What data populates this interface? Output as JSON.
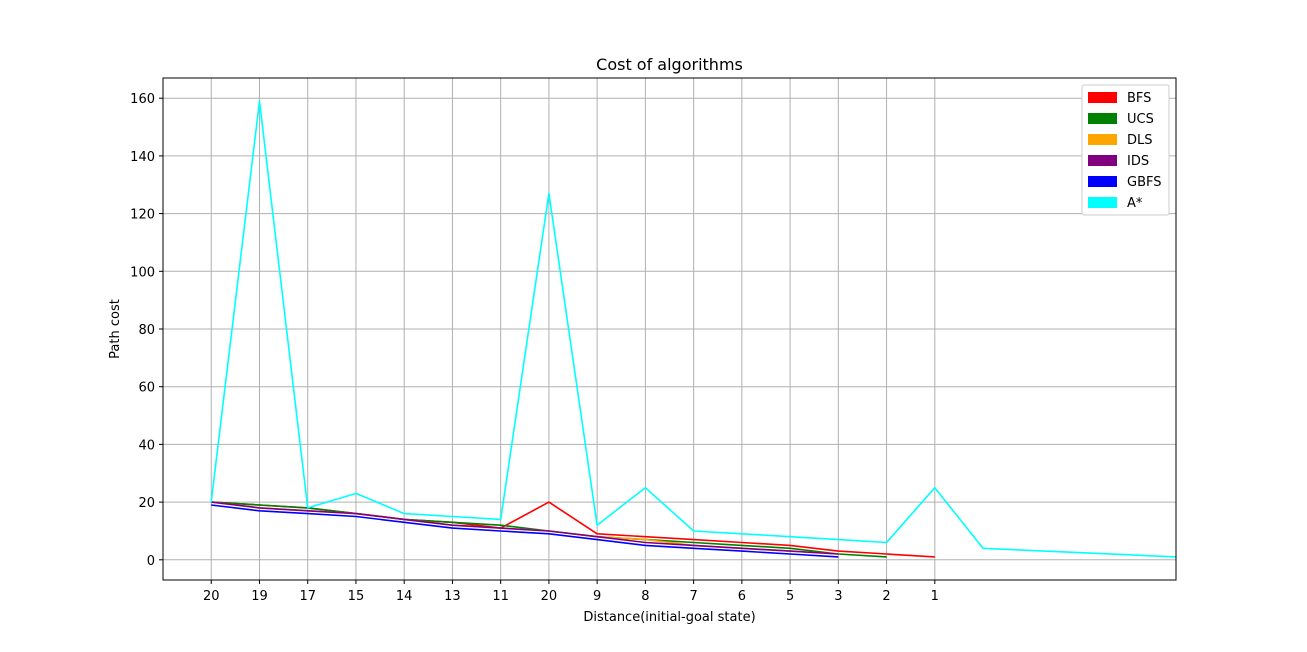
{
  "chart_data": {
    "type": "line",
    "title": "Cost of algorithms",
    "xlabel": "Distance(initial-goal state)",
    "ylabel": "Path cost",
    "x_tick_labels": [
      "20",
      "19",
      "17",
      "15",
      "14",
      "13",
      "11",
      "20",
      "9",
      "8",
      "7",
      "6",
      "5",
      "3",
      "2",
      "1"
    ],
    "y_ticks": [
      0,
      20,
      40,
      60,
      80,
      100,
      120,
      140,
      160
    ],
    "xlim": [
      -1,
      20
    ],
    "ylim": [
      -7,
      167
    ],
    "grid": true,
    "legend_position": "top-right",
    "series": [
      {
        "name": "BFS",
        "color": "#ff0000",
        "x": [
          0,
          1,
          2,
          3,
          4,
          5,
          6,
          7,
          8,
          9,
          10,
          11,
          12,
          13,
          14,
          15
        ],
        "values": [
          20,
          19,
          18,
          16,
          14,
          13,
          11,
          20,
          9,
          8,
          7,
          6,
          5,
          3,
          2,
          1
        ]
      },
      {
        "name": "UCS",
        "color": "#008000",
        "x": [
          0,
          1,
          2,
          3,
          4,
          5,
          6,
          7,
          8,
          9,
          10,
          11,
          12,
          13,
          14
        ],
        "values": [
          20,
          19,
          18,
          16,
          14,
          13,
          12,
          10,
          8,
          7,
          6,
          5,
          4,
          2,
          1
        ]
      },
      {
        "name": "DLS",
        "color": "#ffa500",
        "x": [
          0,
          1,
          2,
          3,
          4,
          5,
          6,
          7,
          8,
          9,
          10,
          11,
          12,
          13
        ],
        "values": [
          20,
          18,
          17,
          16,
          14,
          12,
          11,
          10,
          8,
          7,
          5,
          4,
          3,
          2
        ]
      },
      {
        "name": "IDS",
        "color": "#800080",
        "x": [
          0,
          1,
          2,
          3,
          4,
          5,
          6,
          7,
          8,
          9,
          10,
          11,
          12,
          13
        ],
        "values": [
          20,
          18,
          17,
          16,
          14,
          12,
          11,
          10,
          8,
          6,
          5,
          4,
          3,
          2
        ]
      },
      {
        "name": "GBFS",
        "color": "#0000ff",
        "x": [
          0,
          1,
          2,
          3,
          4,
          5,
          6,
          7,
          8,
          9,
          10,
          11,
          12,
          13
        ],
        "values": [
          19,
          17,
          16,
          15,
          13,
          11,
          10,
          9,
          7,
          5,
          4,
          3,
          2,
          1
        ]
      },
      {
        "name": "A*",
        "color": "#00ffff",
        "x": [
          0,
          1,
          2,
          3,
          4,
          5,
          6,
          7,
          8,
          9,
          10,
          11,
          12,
          13,
          14,
          15,
          16,
          20
        ],
        "values": [
          20,
          159,
          18,
          23,
          16,
          15,
          14,
          127,
          12,
          25,
          10,
          9,
          8,
          7,
          6,
          25,
          4,
          1
        ]
      }
    ]
  }
}
